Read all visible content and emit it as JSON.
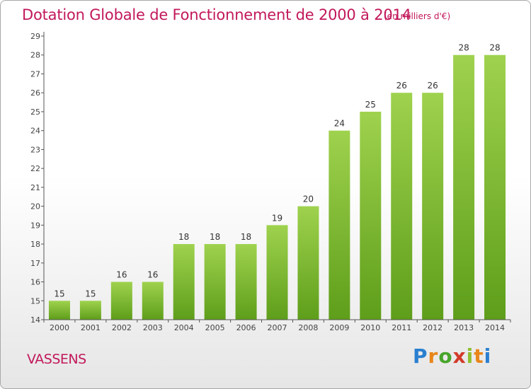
{
  "chart_data": {
    "type": "bar",
    "title": "Dotation Globale de Fonctionnement de 2000 à 2014",
    "subtitle": "(en milliers d'€)",
    "categories": [
      "2000",
      "2001",
      "2002",
      "2003",
      "2004",
      "2005",
      "2006",
      "2007",
      "2008",
      "2009",
      "2010",
      "2011",
      "2012",
      "2013",
      "2014"
    ],
    "values": [
      15,
      15,
      16,
      16,
      18,
      18,
      18,
      19,
      20,
      24,
      25,
      26,
      26,
      28,
      28
    ],
    "data_labels": [
      "15",
      "15",
      "16",
      "16",
      "18",
      "18",
      "18",
      "19",
      "20",
      "24",
      "25",
      "26",
      "26",
      "28",
      "28"
    ],
    "yticks": [
      "14",
      "15",
      "16",
      "17",
      "18",
      "19",
      "20",
      "21",
      "22",
      "23",
      "24",
      "25",
      "26",
      "27",
      "28",
      "29"
    ],
    "ylim": [
      14,
      29
    ],
    "grid": false,
    "bar_color_top": "#9fd24e",
    "bar_color_bottom": "#5e9e1a"
  },
  "footer": {
    "commune": "VASSENS",
    "logo": {
      "p": "P",
      "r": "r",
      "o": "o",
      "x": "x",
      "i1": "i",
      "t": "t",
      "i2": "i"
    }
  }
}
